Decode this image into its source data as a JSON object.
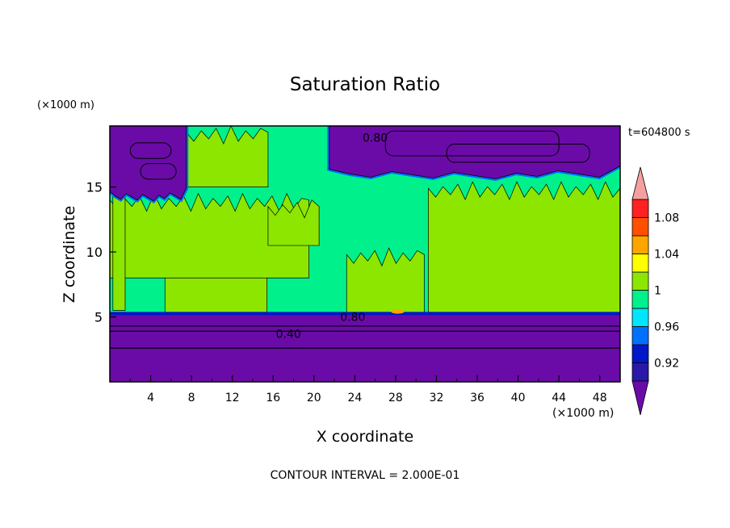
{
  "chart_data": {
    "type": "heatmap",
    "title": "Saturation Ratio",
    "xlabel": "X coordinate",
    "ylabel": "Z coordinate",
    "x_unit": "(×1000 m)",
    "y_unit": "(×1000 m)",
    "time_label": "t=604800 s",
    "footer": "CONTOUR INTERVAL = 2.000E-01",
    "xlim": [
      0,
      50
    ],
    "ylim": [
      0,
      19.7
    ],
    "x_ticks": [
      4,
      8,
      12,
      16,
      20,
      24,
      28,
      32,
      36,
      40,
      44,
      48
    ],
    "x_minor_ticks": [
      2,
      6,
      10,
      14,
      18,
      22,
      26,
      30,
      34,
      38,
      42,
      46,
      50
    ],
    "y_ticks": [
      5,
      10,
      15
    ],
    "contour_labels": [
      {
        "text": "0.80",
        "x": 26.0,
        "y": 18.8
      },
      {
        "text": "0.80",
        "x": 23.8,
        "y": 5.0
      },
      {
        "text": "0.40",
        "x": 17.5,
        "y": 3.7
      }
    ],
    "colorbar": {
      "levels": [
        0.9,
        0.92,
        0.94,
        0.96,
        0.98,
        1.0,
        1.02,
        1.04,
        1.06,
        1.08,
        1.1
      ],
      "tick_labels": [
        "0.92",
        "0.96",
        "1",
        "1.04",
        "1.08"
      ],
      "tick_values": [
        0.92,
        0.96,
        1.0,
        1.04,
        1.08
      ],
      "colors": [
        "#2a18a8",
        "#0018c8",
        "#0070ff",
        "#00e6ff",
        "#00f08c",
        "#8ce600",
        "#ffff00",
        "#ffa500",
        "#ff5000",
        "#ff2020"
      ],
      "under_color": "#6a0ba8",
      "over_color": "#f5a0a0"
    },
    "regions": {
      "lower_layer": {
        "value": 0.5,
        "z_top": 5.2,
        "contours": [
          4.3,
          3.9,
          2.6
        ]
      },
      "background": {
        "value": 0.99
      },
      "humid_columns": [
        {
          "x0": 5.4,
          "x1": 15.4,
          "z0": 5.2,
          "z1": 9.8,
          "value": 1.01
        },
        {
          "x0": 23.2,
          "x1": 30.8,
          "z0": 5.2,
          "z1": 10.3,
          "value": 1.01
        },
        {
          "x0": 31.2,
          "x1": 50.0,
          "z0": 5.2,
          "z1": 15.4,
          "value": 1.01
        },
        {
          "x0": 0.0,
          "x1": 19.5,
          "z0": 8.0,
          "z1": 14.5,
          "value": 1.01
        },
        {
          "x0": 7.5,
          "x1": 15.5,
          "z0": 15.0,
          "z1": 19.7,
          "value": 1.01
        },
        {
          "x0": 15.5,
          "x1": 20.5,
          "z0": 10.5,
          "z1": 14.0,
          "value": 1.01
        },
        {
          "x0": 0.3,
          "x1": 1.5,
          "z0": 5.5,
          "z1": 17.0,
          "value": 1.01
        }
      ],
      "hotspot": {
        "x": 28.2,
        "z": 5.4,
        "value": 1.05
      },
      "dry_top_left": {
        "x0": 0.0,
        "x1": 7.5,
        "z0": 14.3,
        "z1": 19.7,
        "value": 0.85
      },
      "dry_top_right": {
        "x0": 21.5,
        "x1": 50.0,
        "z0": 16.0,
        "z1": 19.7,
        "value": 0.8
      }
    }
  }
}
